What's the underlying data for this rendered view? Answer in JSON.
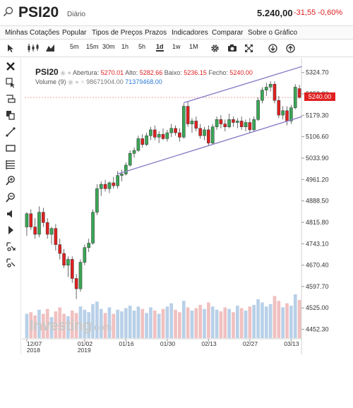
{
  "header": {
    "symbol": "PSI20",
    "timeframe": "Diário",
    "last": "5.240,00",
    "change": "-31,55",
    "change_pct": "-0,60%"
  },
  "menu": [
    "Minhas Cotações",
    "Popular",
    "Tipos de Preços",
    "Prazos",
    "Indicadores",
    "Comparar",
    "Sobre o Gráfico"
  ],
  "toolbar": {
    "intervals": [
      "5m",
      "15m",
      "30m",
      "1h",
      "5h",
      "1d",
      "1w",
      "1M"
    ],
    "active_interval": "1d",
    "icons": [
      "cursor-icon",
      "candles-icon",
      "area-chart-icon",
      "gear-icon",
      "camera-icon",
      "fullscreen-icon",
      "download-icon",
      "share-icon"
    ]
  },
  "sidebar_icons": [
    "close-icon",
    "cursor-cross-icon",
    "ruler-icon",
    "copy-icon",
    "trendline-icon",
    "rectangle-icon",
    "fibonacci-icon",
    "zoom-in-icon",
    "zoom-out-icon",
    "speaker-icon",
    "pin-icon",
    "lock-icon",
    "unlock-icon"
  ],
  "legend": {
    "symbol": "PSI20",
    "open_label": "Abertura:",
    "open": "5270.01",
    "high_label": "Alto:",
    "high": "5282.66",
    "low_label": "Baixo:",
    "low": "5236.15",
    "close_label": "Fecho:",
    "close": "5240.00",
    "volume_label": "Volume (9)",
    "volume_1": "98671904.00",
    "volume_2": "71379468.00"
  },
  "last_badge": "5240.00",
  "watermark": {
    "brand": "Investing",
    "suffix": ".com"
  },
  "colors": {
    "up": "#3aa655",
    "down": "#e02020",
    "trendline": "#8c80c8",
    "volume_up": "#b8d0e8",
    "volume_down": "#f0c0c0"
  },
  "chart_data": {
    "type": "candlestick",
    "y_ticks": [
      "5324.70",
      "5252.20",
      "5179.30",
      "5106.60",
      "5033.90",
      "4961.20",
      "4888.50",
      "4815.80",
      "4743.10",
      "4670.40",
      "4597.70",
      "4525.00",
      "4452.30"
    ],
    "ylim": [
      4420,
      5360
    ],
    "x_ticks": [
      {
        "label": "12/07",
        "sub": "2018",
        "index": 0
      },
      {
        "label": "01/02",
        "sub": "2019",
        "index": 14
      },
      {
        "label": "01/16",
        "sub": "",
        "index": 24
      },
      {
        "label": "01/30",
        "sub": "",
        "index": 34
      },
      {
        "label": "02/13",
        "sub": "",
        "index": 44
      },
      {
        "label": "02/27",
        "sub": "",
        "index": 54
      },
      {
        "label": "03/13",
        "sub": "",
        "index": 64
      }
    ],
    "candles": [
      {
        "o": 4800,
        "h": 4850,
        "l": 4770,
        "c": 4845
      },
      {
        "o": 4845,
        "h": 4860,
        "l": 4790,
        "c": 4800
      },
      {
        "o": 4800,
        "h": 4830,
        "l": 4760,
        "c": 4775
      },
      {
        "o": 4775,
        "h": 4870,
        "l": 4765,
        "c": 4850
      },
      {
        "o": 4850,
        "h": 4865,
        "l": 4800,
        "c": 4815
      },
      {
        "o": 4815,
        "h": 4830,
        "l": 4760,
        "c": 4775
      },
      {
        "o": 4775,
        "h": 4800,
        "l": 4740,
        "c": 4795
      },
      {
        "o": 4795,
        "h": 4810,
        "l": 4720,
        "c": 4740
      },
      {
        "o": 4740,
        "h": 4760,
        "l": 4690,
        "c": 4710
      },
      {
        "o": 4710,
        "h": 4725,
        "l": 4660,
        "c": 4670
      },
      {
        "o": 4670,
        "h": 4700,
        "l": 4630,
        "c": 4690
      },
      {
        "o": 4690,
        "h": 4700,
        "l": 4610,
        "c": 4625
      },
      {
        "o": 4625,
        "h": 4640,
        "l": 4555,
        "c": 4590
      },
      {
        "o": 4590,
        "h": 4690,
        "l": 4580,
        "c": 4680
      },
      {
        "o": 4680,
        "h": 4740,
        "l": 4670,
        "c": 4730
      },
      {
        "o": 4730,
        "h": 4760,
        "l": 4715,
        "c": 4745
      },
      {
        "o": 4745,
        "h": 4860,
        "l": 4740,
        "c": 4850
      },
      {
        "o": 4850,
        "h": 4945,
        "l": 4840,
        "c": 4930
      },
      {
        "o": 4930,
        "h": 4955,
        "l": 4905,
        "c": 4945
      },
      {
        "o": 4945,
        "h": 4960,
        "l": 4920,
        "c": 4930
      },
      {
        "o": 4930,
        "h": 4955,
        "l": 4915,
        "c": 4950
      },
      {
        "o": 4950,
        "h": 4970,
        "l": 4930,
        "c": 4940
      },
      {
        "o": 4940,
        "h": 4990,
        "l": 4930,
        "c": 4975
      },
      {
        "o": 4975,
        "h": 4995,
        "l": 4955,
        "c": 4980
      },
      {
        "o": 4980,
        "h": 5020,
        "l": 4975,
        "c": 5010
      },
      {
        "o": 5010,
        "h": 5060,
        "l": 5005,
        "c": 5050
      },
      {
        "o": 5050,
        "h": 5070,
        "l": 5035,
        "c": 5060
      },
      {
        "o": 5060,
        "h": 5110,
        "l": 5055,
        "c": 5100
      },
      {
        "o": 5100,
        "h": 5115,
        "l": 5070,
        "c": 5080
      },
      {
        "o": 5080,
        "h": 5120,
        "l": 5075,
        "c": 5110
      },
      {
        "o": 5110,
        "h": 5140,
        "l": 5095,
        "c": 5130
      },
      {
        "o": 5130,
        "h": 5145,
        "l": 5095,
        "c": 5105
      },
      {
        "o": 5105,
        "h": 5125,
        "l": 5085,
        "c": 5115
      },
      {
        "o": 5115,
        "h": 5135,
        "l": 5095,
        "c": 5100
      },
      {
        "o": 5100,
        "h": 5130,
        "l": 5090,
        "c": 5120
      },
      {
        "o": 5120,
        "h": 5150,
        "l": 5105,
        "c": 5135
      },
      {
        "o": 5135,
        "h": 5145,
        "l": 5110,
        "c": 5120
      },
      {
        "o": 5120,
        "h": 5135,
        "l": 5090,
        "c": 5105
      },
      {
        "o": 5105,
        "h": 5220,
        "l": 5100,
        "c": 5210
      },
      {
        "o": 5210,
        "h": 5225,
        "l": 5140,
        "c": 5150
      },
      {
        "o": 5150,
        "h": 5170,
        "l": 5120,
        "c": 5160
      },
      {
        "o": 5160,
        "h": 5175,
        "l": 5125,
        "c": 5135
      },
      {
        "o": 5135,
        "h": 5150,
        "l": 5100,
        "c": 5110
      },
      {
        "o": 5110,
        "h": 5140,
        "l": 5095,
        "c": 5130
      },
      {
        "o": 5130,
        "h": 5145,
        "l": 5075,
        "c": 5085
      },
      {
        "o": 5085,
        "h": 5150,
        "l": 5080,
        "c": 5140
      },
      {
        "o": 5140,
        "h": 5175,
        "l": 5130,
        "c": 5165
      },
      {
        "o": 5165,
        "h": 5180,
        "l": 5135,
        "c": 5150
      },
      {
        "o": 5150,
        "h": 5165,
        "l": 5125,
        "c": 5140
      },
      {
        "o": 5140,
        "h": 5185,
        "l": 5135,
        "c": 5165
      },
      {
        "o": 5165,
        "h": 5175,
        "l": 5140,
        "c": 5155
      },
      {
        "o": 5155,
        "h": 5170,
        "l": 5135,
        "c": 5160
      },
      {
        "o": 5160,
        "h": 5175,
        "l": 5130,
        "c": 5140
      },
      {
        "o": 5140,
        "h": 5165,
        "l": 5125,
        "c": 5155
      },
      {
        "o": 5155,
        "h": 5170,
        "l": 5120,
        "c": 5130
      },
      {
        "o": 5130,
        "h": 5175,
        "l": 5125,
        "c": 5165
      },
      {
        "o": 5165,
        "h": 5240,
        "l": 5160,
        "c": 5230
      },
      {
        "o": 5230,
        "h": 5275,
        "l": 5220,
        "c": 5265
      },
      {
        "o": 5265,
        "h": 5290,
        "l": 5245,
        "c": 5275
      },
      {
        "o": 5275,
        "h": 5295,
        "l": 5260,
        "c": 5285
      },
      {
        "o": 5285,
        "h": 5295,
        "l": 5220,
        "c": 5230
      },
      {
        "o": 5230,
        "h": 5245,
        "l": 5170,
        "c": 5180
      },
      {
        "o": 5180,
        "h": 5210,
        "l": 5165,
        "c": 5195
      },
      {
        "o": 5195,
        "h": 5210,
        "l": 5145,
        "c": 5160
      },
      {
        "o": 5160,
        "h": 5215,
        "l": 5150,
        "c": 5205
      },
      {
        "o": 5205,
        "h": 5285,
        "l": 5200,
        "c": 5275
      },
      {
        "o": 5270.01,
        "h": 5282.66,
        "l": 5236.15,
        "c": 5240
      }
    ],
    "volume": [
      3.0,
      3.2,
      2.8,
      3.5,
      3.0,
      3.6,
      2.6,
      3.3,
      3.8,
      3.0,
      2.7,
      3.4,
      3.1,
      3.9,
      3.5,
      3.2,
      4.2,
      4.5,
      3.6,
      3.1,
      3.8,
      3.0,
      3.5,
      3.3,
      3.7,
      4.0,
      3.4,
      3.9,
      3.6,
      3.1,
      3.8,
      3.4,
      3.0,
      3.6,
      3.9,
      4.3,
      3.5,
      3.2,
      4.6,
      3.8,
      3.4,
      3.7,
      4.1,
      3.6,
      4.4,
      3.9,
      3.5,
      3.3,
      3.8,
      3.6,
      3.2,
      4.0,
      3.7,
      3.4,
      3.9,
      4.1,
      4.8,
      4.4,
      3.9,
      4.2,
      5.2,
      4.6,
      3.8,
      4.3,
      4.0,
      5.4,
      4.7
    ],
    "trendlines": [
      {
        "from_index": 38,
        "from_price": 5222,
        "to_index": 66,
        "to_price": 5345
      },
      {
        "from_index": 22,
        "from_price": 4980,
        "to_index": 66,
        "to_price": 5175
      }
    ],
    "last_price_line": 5240
  }
}
